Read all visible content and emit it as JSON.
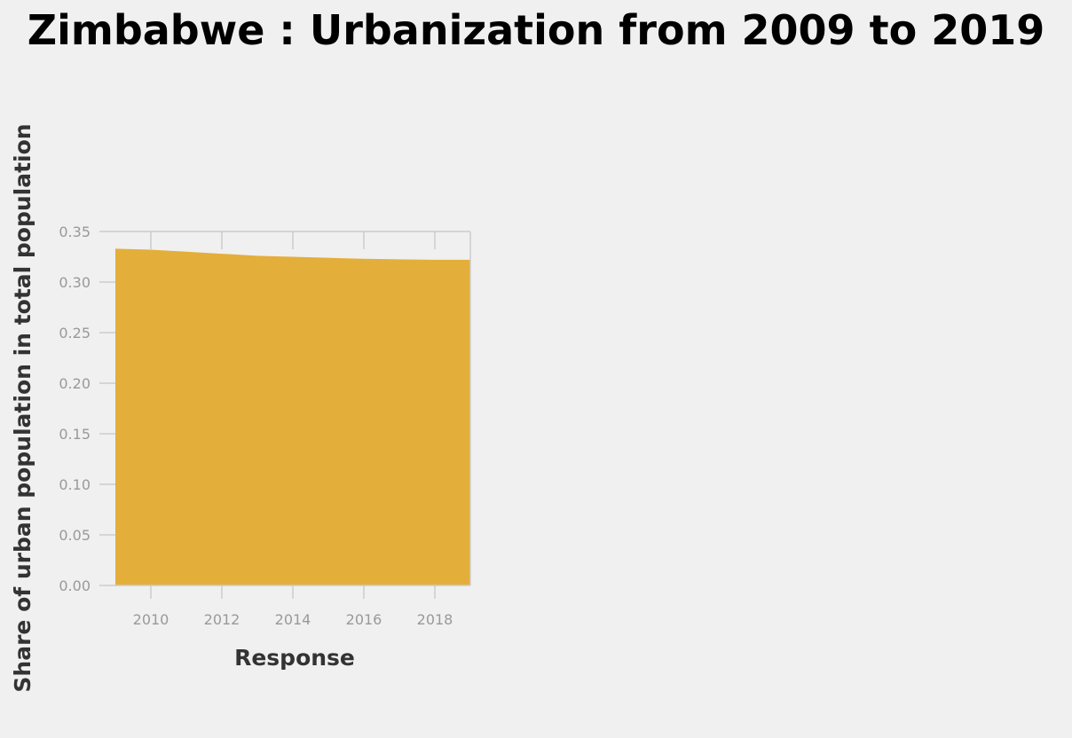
{
  "chart_data": {
    "type": "area",
    "title": "Zimbabwe : Urbanization from 2009 to 2019",
    "xlabel": "Response",
    "ylabel": "Share of urban population in total population",
    "x": [
      2009,
      2010,
      2011,
      2012,
      2013,
      2014,
      2015,
      2016,
      2017,
      2018,
      2019
    ],
    "y": [
      0.333,
      0.332,
      0.33,
      0.328,
      0.326,
      0.325,
      0.324,
      0.323,
      0.3225,
      0.322,
      0.322
    ],
    "xlim": [
      2009,
      2019
    ],
    "ylim": [
      0,
      0.35
    ],
    "xticks": [
      "2010",
      "2012",
      "2014",
      "2016",
      "2018"
    ],
    "yticks": [
      "0.00",
      "0.05",
      "0.10",
      "0.15",
      "0.20",
      "0.25",
      "0.30",
      "0.35"
    ],
    "fill_color": "#e3ae3a",
    "grid": false,
    "legend": "none"
  }
}
